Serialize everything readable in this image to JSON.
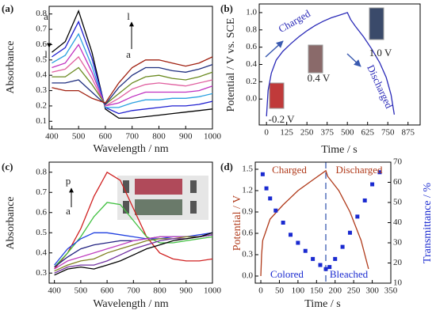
{
  "chart_data": [
    {
      "type": "line",
      "panel": "(a)",
      "xlabel": "Wavelength / nm",
      "ylabel": "Absorbance",
      "annotations": [
        "a",
        "l",
        "l",
        "a"
      ],
      "xlim": [
        390,
        1000
      ],
      "xticks": [
        400,
        500,
        600,
        700,
        800,
        900,
        1000
      ],
      "ylim": [
        0.05,
        0.85
      ],
      "yticks": [
        0.1,
        0.2,
        0.3,
        0.4,
        0.5,
        0.6,
        0.7,
        0.8
      ],
      "x": [
        400,
        450,
        500,
        550,
        600,
        650,
        700,
        750,
        800,
        850,
        900,
        950,
        1000
      ],
      "series": [
        {
          "color": "#000000",
          "values": [
            0.55,
            0.62,
            0.82,
            0.55,
            0.18,
            0.12,
            0.12,
            0.13,
            0.14,
            0.15,
            0.16,
            0.17,
            0.18
          ]
        },
        {
          "color": "#1f1fd0",
          "values": [
            0.52,
            0.58,
            0.75,
            0.51,
            0.19,
            0.15,
            0.17,
            0.18,
            0.19,
            0.2,
            0.2,
            0.21,
            0.23
          ]
        },
        {
          "color": "#2aa0e0",
          "values": [
            0.48,
            0.53,
            0.67,
            0.46,
            0.19,
            0.19,
            0.22,
            0.24,
            0.24,
            0.25,
            0.25,
            0.26,
            0.28
          ]
        },
        {
          "color": "#c030c0",
          "values": [
            0.45,
            0.48,
            0.6,
            0.42,
            0.2,
            0.22,
            0.26,
            0.29,
            0.29,
            0.29,
            0.29,
            0.3,
            0.33
          ]
        },
        {
          "color": "#e060a0",
          "values": [
            0.42,
            0.44,
            0.52,
            0.38,
            0.2,
            0.25,
            0.31,
            0.34,
            0.35,
            0.34,
            0.33,
            0.35,
            0.37
          ]
        },
        {
          "color": "#6a8a20",
          "values": [
            0.39,
            0.39,
            0.45,
            0.34,
            0.21,
            0.28,
            0.35,
            0.39,
            0.4,
            0.38,
            0.37,
            0.39,
            0.42
          ]
        },
        {
          "color": "#203080",
          "values": [
            0.35,
            0.35,
            0.37,
            0.29,
            0.21,
            0.32,
            0.4,
            0.45,
            0.45,
            0.43,
            0.42,
            0.44,
            0.47
          ]
        },
        {
          "color": "#a02010",
          "values": [
            0.32,
            0.3,
            0.3,
            0.25,
            0.22,
            0.35,
            0.45,
            0.5,
            0.5,
            0.48,
            0.46,
            0.48,
            0.52
          ]
        }
      ]
    },
    {
      "type": "line",
      "panel": "(b)",
      "xlabel": "Time / s",
      "ylabel": "Potential / V vs. SCE",
      "annotations": [
        "Charged",
        "Discharged",
        "-0.2 V",
        "0.4 V",
        "1.0 V"
      ],
      "xlim": [
        -45,
        950
      ],
      "xticks": [
        0,
        125,
        250,
        375,
        500,
        625,
        750,
        875
      ],
      "ylim": [
        -0.3,
        1.1
      ],
      "yticks": [
        {
          "value": 0,
          "label": "0.0"
        },
        0.2,
        0.4,
        0.6,
        0.8,
        {
          "value": 1,
          "label": "1.0"
        }
      ],
      "x": [
        0,
        10,
        30,
        60,
        100,
        150,
        200,
        250,
        300,
        350,
        400,
        450,
        500,
        520,
        550,
        600,
        650,
        700,
        740,
        770,
        790
      ],
      "series": [
        {
          "color": "#2a2ab8",
          "values": [
            -0.2,
            0.1,
            0.3,
            0.45,
            0.55,
            0.64,
            0.72,
            0.79,
            0.85,
            0.9,
            0.94,
            0.97,
            1.0,
            0.92,
            0.84,
            0.72,
            0.58,
            0.42,
            0.25,
            0.05,
            -0.18
          ]
        }
      ]
    },
    {
      "type": "line",
      "panel": "(c)",
      "xlabel": "Wavelength / nm",
      "ylabel": "Absorbance",
      "annotations": [
        "p",
        "a"
      ],
      "xlim": [
        380,
        1000
      ],
      "xticks": [
        400,
        500,
        600,
        700,
        800,
        900,
        1000
      ],
      "ylim": [
        0.25,
        0.85
      ],
      "yticks": [
        0.3,
        0.4,
        0.5,
        0.6,
        0.7,
        0.8
      ],
      "x": [
        400,
        450,
        500,
        550,
        600,
        650,
        700,
        750,
        800,
        850,
        900,
        950,
        1000
      ],
      "series": [
        {
          "color": "#d02020",
          "values": [
            0.32,
            0.4,
            0.52,
            0.68,
            0.8,
            0.76,
            0.62,
            0.48,
            0.4,
            0.37,
            0.36,
            0.36,
            0.37
          ]
        },
        {
          "color": "#40c040",
          "values": [
            0.33,
            0.4,
            0.48,
            0.58,
            0.65,
            0.64,
            0.56,
            0.48,
            0.45,
            0.45,
            0.46,
            0.47,
            0.48
          ]
        },
        {
          "color": "#2040e0",
          "values": [
            0.34,
            0.42,
            0.47,
            0.5,
            0.5,
            0.49,
            0.48,
            0.47,
            0.47,
            0.48,
            0.48,
            0.49,
            0.5
          ]
        },
        {
          "color": "#202080",
          "values": [
            0.33,
            0.38,
            0.42,
            0.44,
            0.45,
            0.46,
            0.46,
            0.47,
            0.48,
            0.48,
            0.48,
            0.48,
            0.49
          ]
        },
        {
          "color": "#c040c0",
          "values": [
            0.32,
            0.36,
            0.38,
            0.4,
            0.42,
            0.44,
            0.46,
            0.47,
            0.48,
            0.48,
            0.48,
            0.48,
            0.49
          ]
        },
        {
          "color": "#808020",
          "values": [
            0.31,
            0.34,
            0.36,
            0.37,
            0.4,
            0.42,
            0.44,
            0.46,
            0.47,
            0.47,
            0.48,
            0.48,
            0.49
          ]
        },
        {
          "color": "#7030a0",
          "values": [
            0.3,
            0.33,
            0.34,
            0.34,
            0.36,
            0.39,
            0.42,
            0.44,
            0.46,
            0.47,
            0.47,
            0.48,
            0.49
          ]
        },
        {
          "color": "#000000",
          "values": [
            0.29,
            0.32,
            0.33,
            0.32,
            0.34,
            0.36,
            0.39,
            0.42,
            0.44,
            0.46,
            0.47,
            0.48,
            0.5
          ]
        }
      ]
    },
    {
      "type": "line",
      "panel": "(d)",
      "xlabel": "Time / s",
      "ylabel": "Potential / V",
      "y2label": "Transmittance / %",
      "annotations": [
        "Charged",
        "Discharged",
        "Colored",
        "Bleached"
      ],
      "xlim": [
        -15,
        350
      ],
      "xticks": [
        0,
        50,
        100,
        150,
        200,
        250,
        300,
        350
      ],
      "ylim": [
        -0.1,
        1.6
      ],
      "yticks": [
        {
          "value": 0,
          "label": "0.0"
        },
        0.3,
        0.6,
        0.9,
        1.2,
        1.5
      ],
      "y2lim": [
        10,
        70
      ],
      "y2ticks": [
        10,
        20,
        30,
        40,
        50,
        60,
        70
      ],
      "series": [
        {
          "color": "#b03a1a",
          "mode": "line",
          "x": [
            0,
            2,
            5,
            25,
            60,
            100,
            140,
            175,
            180,
            210,
            240,
            270,
            290
          ],
          "values": [
            0,
            0.3,
            0.5,
            0.8,
            1.0,
            1.2,
            1.35,
            1.48,
            1.4,
            1.2,
            0.9,
            0.5,
            0.1
          ]
        },
        {
          "color": "#1a2ad0",
          "mode": "markers",
          "axis": "y2",
          "x": [
            5,
            15,
            25,
            40,
            60,
            80,
            100,
            120,
            140,
            160,
            175,
            185,
            200,
            220,
            240,
            260,
            280,
            300,
            320
          ],
          "values": [
            64,
            57,
            52,
            46,
            40,
            34,
            30,
            26,
            22,
            19,
            17,
            18,
            22,
            28,
            35,
            43,
            51,
            59,
            65
          ]
        }
      ]
    }
  ]
}
